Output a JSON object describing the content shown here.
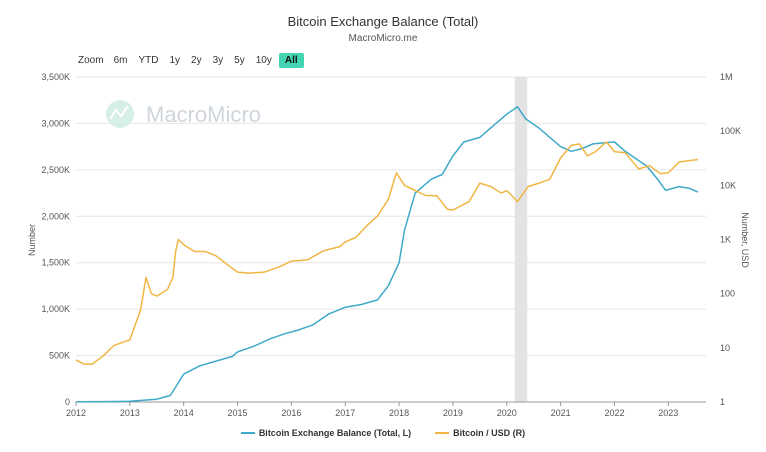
{
  "chart_data": {
    "type": "line",
    "title": "Bitcoin Exchange Balance (Total)",
    "subtitle": "MacroMicro.me",
    "watermark": "MacroMicro",
    "zoom": {
      "label": "Zoom",
      "options": [
        "6m",
        "YTD",
        "1y",
        "2y",
        "3y",
        "5y",
        "10y",
        "All"
      ],
      "selected": "All"
    },
    "x_ticks": [
      "2012",
      "2013",
      "2014",
      "2015",
      "2016",
      "2017",
      "2018",
      "2019",
      "2020",
      "2021",
      "2022",
      "2023"
    ],
    "xlim": [
      2012.0,
      2023.7
    ],
    "left_axis": {
      "title": "Number",
      "ylim": [
        0,
        3500
      ],
      "ticks": [
        0,
        500,
        1000,
        1500,
        2000,
        2500,
        3000,
        3500
      ],
      "tick_labels": [
        "0",
        "500K",
        "1,000K",
        "1,500K",
        "2,000K",
        "2,500K",
        "3,000K",
        "3,500K"
      ]
    },
    "right_axis": {
      "title": "Number, USD",
      "scale": "log",
      "ylim": [
        1,
        1000000
      ],
      "ticks": [
        1,
        10,
        100,
        1000,
        10000,
        100000,
        1000000
      ],
      "tick_labels": [
        "1",
        "10",
        "100",
        "1K",
        "10K",
        "100K",
        "1M"
      ]
    },
    "shaded_region": [
      2020.15,
      2020.38
    ],
    "series": [
      {
        "name": "Bitcoin Exchange Balance (Total, L)",
        "axis": "left",
        "color": "#3fa9c9",
        "points": [
          [
            2012.0,
            2
          ],
          [
            2012.5,
            4
          ],
          [
            2013.0,
            8
          ],
          [
            2013.5,
            30
          ],
          [
            2013.75,
            70
          ],
          [
            2013.85,
            160
          ],
          [
            2014.0,
            300
          ],
          [
            2014.3,
            390
          ],
          [
            2014.6,
            440
          ],
          [
            2014.9,
            490
          ],
          [
            2015.0,
            540
          ],
          [
            2015.3,
            600
          ],
          [
            2015.6,
            680
          ],
          [
            2015.9,
            740
          ],
          [
            2016.1,
            770
          ],
          [
            2016.4,
            830
          ],
          [
            2016.7,
            950
          ],
          [
            2017.0,
            1020
          ],
          [
            2017.3,
            1050
          ],
          [
            2017.6,
            1100
          ],
          [
            2017.8,
            1250
          ],
          [
            2018.0,
            1500
          ],
          [
            2018.1,
            1850
          ],
          [
            2018.3,
            2250
          ],
          [
            2018.6,
            2400
          ],
          [
            2018.8,
            2450
          ],
          [
            2019.0,
            2650
          ],
          [
            2019.2,
            2800
          ],
          [
            2019.5,
            2850
          ],
          [
            2019.7,
            2950
          ],
          [
            2019.9,
            3050
          ],
          [
            2020.0,
            3100
          ],
          [
            2020.2,
            3180
          ],
          [
            2020.35,
            3050
          ],
          [
            2020.6,
            2950
          ],
          [
            2020.8,
            2850
          ],
          [
            2021.0,
            2750
          ],
          [
            2021.2,
            2700
          ],
          [
            2021.4,
            2730
          ],
          [
            2021.6,
            2780
          ],
          [
            2021.8,
            2790
          ],
          [
            2022.0,
            2800
          ],
          [
            2022.2,
            2700
          ],
          [
            2022.4,
            2620
          ],
          [
            2022.6,
            2540
          ],
          [
            2022.8,
            2400
          ],
          [
            2022.95,
            2280
          ],
          [
            2023.2,
            2320
          ],
          [
            2023.4,
            2300
          ],
          [
            2023.55,
            2260
          ]
        ]
      },
      {
        "name": "Bitcoin / USD (R)",
        "axis": "right",
        "color": "#f0b542",
        "points": [
          [
            2012.0,
            6
          ],
          [
            2012.15,
            5
          ],
          [
            2012.3,
            5
          ],
          [
            2012.5,
            7
          ],
          [
            2012.7,
            11
          ],
          [
            2012.9,
            13
          ],
          [
            2013.0,
            14
          ],
          [
            2013.2,
            50
          ],
          [
            2013.3,
            200
          ],
          [
            2013.4,
            100
          ],
          [
            2013.5,
            90
          ],
          [
            2013.7,
            120
          ],
          [
            2013.8,
            200
          ],
          [
            2013.85,
            600
          ],
          [
            2013.9,
            1000
          ],
          [
            2014.0,
            800
          ],
          [
            2014.2,
            600
          ],
          [
            2014.4,
            600
          ],
          [
            2014.6,
            500
          ],
          [
            2014.8,
            350
          ],
          [
            2015.0,
            250
          ],
          [
            2015.2,
            240
          ],
          [
            2015.5,
            250
          ],
          [
            2015.8,
            320
          ],
          [
            2016.0,
            400
          ],
          [
            2016.3,
            420
          ],
          [
            2016.6,
            620
          ],
          [
            2016.9,
            740
          ],
          [
            2017.0,
            900
          ],
          [
            2017.2,
            1100
          ],
          [
            2017.4,
            1800
          ],
          [
            2017.6,
            2700
          ],
          [
            2017.8,
            5500
          ],
          [
            2017.95,
            17000
          ],
          [
            2018.1,
            10000
          ],
          [
            2018.3,
            8000
          ],
          [
            2018.5,
            6500
          ],
          [
            2018.7,
            6400
          ],
          [
            2018.9,
            3600
          ],
          [
            2019.0,
            3500
          ],
          [
            2019.3,
            5000
          ],
          [
            2019.5,
            11000
          ],
          [
            2019.7,
            9500
          ],
          [
            2019.9,
            7200
          ],
          [
            2020.0,
            8000
          ],
          [
            2020.2,
            5000
          ],
          [
            2020.4,
            9500
          ],
          [
            2020.6,
            11000
          ],
          [
            2020.8,
            13000
          ],
          [
            2021.0,
            32000
          ],
          [
            2021.2,
            55000
          ],
          [
            2021.35,
            58000
          ],
          [
            2021.5,
            35000
          ],
          [
            2021.65,
            42000
          ],
          [
            2021.85,
            63000
          ],
          [
            2022.0,
            42000
          ],
          [
            2022.2,
            40000
          ],
          [
            2022.45,
            20000
          ],
          [
            2022.65,
            23000
          ],
          [
            2022.85,
            16500
          ],
          [
            2023.0,
            17000
          ],
          [
            2023.2,
            27000
          ],
          [
            2023.45,
            29000
          ],
          [
            2023.55,
            30000
          ]
        ]
      }
    ],
    "legend_position": "bottom",
    "grid": "horizontal"
  }
}
